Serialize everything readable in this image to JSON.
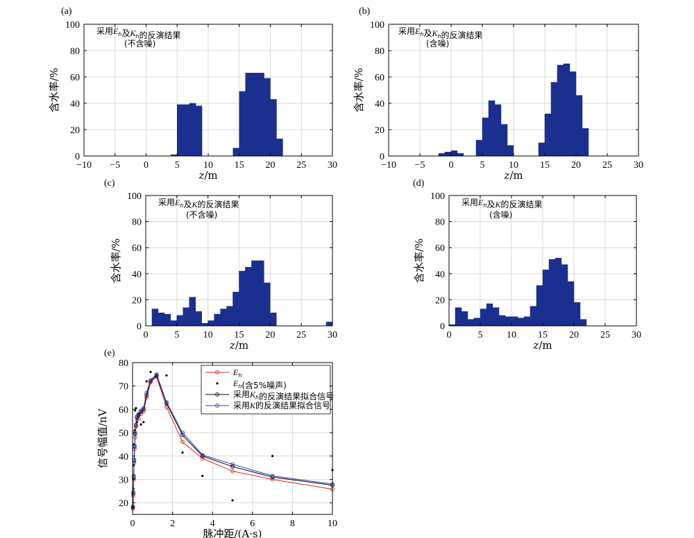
{
  "colors": {
    "bar": "#1a2f8e",
    "grid": "#d9d9d9",
    "axis": "#000000",
    "Eh": "#e02020",
    "noisy": "#000000",
    "fitKh": "#000000",
    "fitK": "#2b3ea8"
  },
  "chart_data": [
    {
      "id": "a",
      "type": "bar",
      "panel_label": "(a)",
      "title_lines": [
        "采用Eh及Kh的反演结果",
        "(不含噪)"
      ],
      "xlabel": "z/m",
      "ylabel": "含水率/%",
      "xlim": [
        -10,
        30
      ],
      "ylim": [
        0,
        100
      ],
      "xticks": [
        "−10",
        "−5",
        "0",
        "5",
        "10",
        "15",
        "20",
        "25",
        "30"
      ],
      "yticks": [
        "0",
        "20",
        "40",
        "60",
        "80",
        "100"
      ],
      "grid": true,
      "bin_width": 1,
      "x": [
        4.5,
        5.5,
        6.5,
        7.5,
        8.5,
        14.5,
        15.5,
        16.5,
        17.5,
        18.5,
        19.5,
        20.5,
        21.5
      ],
      "values": [
        1,
        39,
        39,
        40,
        38,
        6,
        49,
        63,
        63,
        63,
        59,
        43,
        13
      ]
    },
    {
      "id": "b",
      "type": "bar",
      "panel_label": "(b)",
      "title_lines": [
        "采用Eh及Kh的反演结果",
        "(含噪)"
      ],
      "xlabel": "z/m",
      "ylabel": "含水率/%",
      "xlim": [
        -10,
        30
      ],
      "ylim": [
        0,
        100
      ],
      "xticks": [
        "−10",
        "−5",
        "0",
        "5",
        "10",
        "15",
        "20",
        "25",
        "30"
      ],
      "yticks": [
        "0",
        "20",
        "40",
        "60",
        "80",
        "100"
      ],
      "grid": true,
      "bin_width": 1,
      "x": [
        -1.5,
        -0.5,
        0.5,
        1.5,
        4.5,
        5.5,
        6.5,
        7.5,
        8.5,
        9.5,
        14.5,
        15.5,
        16.5,
        17.5,
        18.5,
        19.5,
        20.5,
        21.5
      ],
      "values": [
        2,
        3,
        4,
        2,
        12,
        29,
        42,
        39,
        24,
        8,
        10,
        32,
        56,
        69,
        70,
        64,
        46,
        21
      ]
    },
    {
      "id": "c",
      "type": "bar",
      "panel_label": "(c)",
      "title_lines": [
        "采用Eh及K的反演结果",
        "(不含噪)"
      ],
      "xlabel": "z/m",
      "ylabel": "含水率/%",
      "xlim": [
        0,
        30
      ],
      "ylim": [
        0,
        100
      ],
      "xticks": [
        "0",
        "5",
        "10",
        "15",
        "20",
        "25",
        "30"
      ],
      "yticks": [
        "0",
        "20",
        "40",
        "60",
        "80",
        "100"
      ],
      "grid": true,
      "bin_width": 1,
      "x": [
        1.5,
        2.5,
        3.5,
        4.5,
        5.5,
        6.5,
        7.5,
        8.5,
        9.5,
        10.5,
        11.5,
        12.5,
        13.5,
        14.5,
        15.5,
        16.5,
        17.5,
        18.5,
        19.5,
        20.5,
        29.5
      ],
      "values": [
        13,
        10,
        9,
        4,
        8,
        14,
        22,
        11,
        2,
        4,
        9,
        13,
        15,
        26,
        42,
        45,
        50,
        50,
        33,
        10,
        3
      ]
    },
    {
      "id": "d",
      "type": "bar",
      "panel_label": "(d)",
      "title_lines": [
        "采用Eh及K的反演结果",
        "(含噪)"
      ],
      "xlabel": "z/m",
      "ylabel": "含水率/%",
      "xlim": [
        0,
        30
      ],
      "ylim": [
        0,
        100
      ],
      "xticks": [
        "0",
        "5",
        "10",
        "15",
        "20",
        "25",
        "30"
      ],
      "yticks": [
        "0",
        "20",
        "40",
        "60",
        "80",
        "100"
      ],
      "grid": true,
      "bin_width": 1,
      "x": [
        0.5,
        1.5,
        2.5,
        3.5,
        4.5,
        5.5,
        6.5,
        7.5,
        8.5,
        9.5,
        10.5,
        11.5,
        12.5,
        13.5,
        14.5,
        15.5,
        16.5,
        17.5,
        18.5,
        19.5,
        20.5,
        21.5
      ],
      "values": [
        1,
        14,
        11,
        5,
        6,
        13,
        17,
        14,
        8,
        7,
        7,
        6,
        7,
        15,
        31,
        43,
        51,
        52,
        47,
        34,
        18,
        5
      ]
    },
    {
      "id": "e",
      "type": "line",
      "panel_label": "(e)",
      "xlabel": "脉冲距/(A·s)",
      "ylabel": "信号幅值/nV",
      "xlim": [
        0,
        10
      ],
      "ylim": [
        15,
        80
      ],
      "xticks": [
        "0",
        "2",
        "4",
        "6",
        "8",
        "10"
      ],
      "yticks": [
        "20",
        "30",
        "40",
        "50",
        "60",
        "70",
        "80"
      ],
      "grid": true,
      "legend_position": "top-right",
      "legend": [
        "Eh",
        "Eh(含5%噪声)",
        "采用Kh的反演结果拟合信号",
        "采用K的反演结果拟合信号"
      ],
      "x": [
        0.02,
        0.04,
        0.06,
        0.08,
        0.1,
        0.13,
        0.17,
        0.22,
        0.3,
        0.42,
        0.55,
        0.7,
        0.9,
        1.2,
        1.7,
        2.5,
        3.5,
        5.0,
        7.0,
        10.0
      ],
      "series": [
        {
          "name": "Eh",
          "style": "red-line-circle",
          "values": [
            17.5,
            23,
            30,
            37,
            43,
            48,
            52.5,
            55.5,
            56,
            58,
            59,
            65,
            71.5,
            74,
            61,
            46,
            39,
            33.5,
            30,
            25.8
          ]
        },
        {
          "name": "Eh(含5%噪声)",
          "style": "black-dot",
          "values": [
            18,
            26,
            36,
            45,
            51,
            59.5,
            60.5,
            54.5,
            58,
            53.5,
            54.5,
            72,
            76,
            74.5,
            74.5,
            41.5,
            31.5,
            21,
            40,
            34
          ]
        },
        {
          "name": "采用Kh的反演结果拟合信号",
          "style": "black-line-circle",
          "values": [
            18,
            24,
            31,
            38,
            44,
            49.5,
            53,
            56.5,
            57.5,
            59,
            60,
            66,
            72,
            74.5,
            62.5,
            49,
            40,
            35.5,
            31,
            27.5
          ]
        },
        {
          "name": "采用K的反演结果拟合信号",
          "style": "blue-line-circle",
          "values": [
            18.5,
            24.5,
            31.5,
            38.5,
            44.5,
            50,
            53.5,
            57,
            58,
            59.5,
            60.5,
            67,
            72.5,
            75,
            63,
            50,
            40.5,
            36.5,
            31.5,
            28
          ]
        }
      ]
    }
  ]
}
